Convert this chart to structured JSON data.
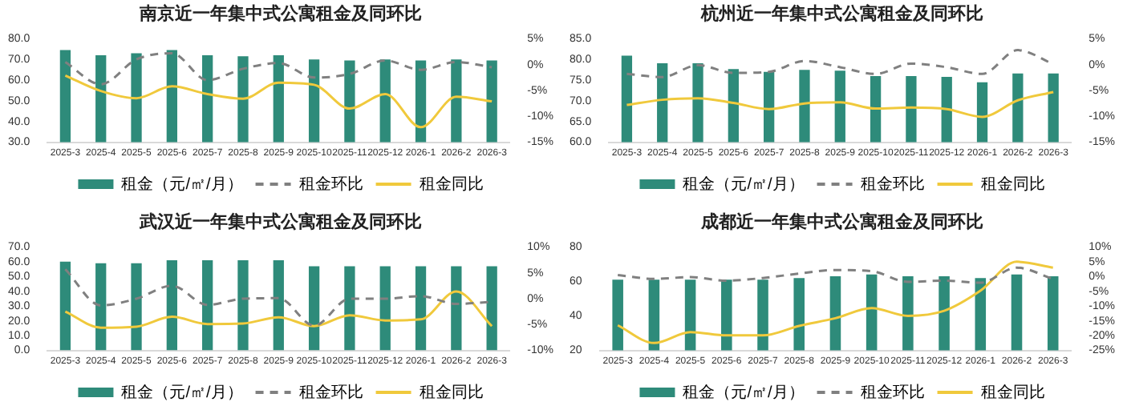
{
  "chart_data": [
    {
      "type": "bar",
      "title": "南京近一年集中式公寓租金及同环比",
      "categories": [
        "2025-3",
        "2025-4",
        "2025-5",
        "2025-6",
        "2025-7",
        "2025-8",
        "2025-9",
        "2025-10",
        "2025-11",
        "2025-12",
        "2026-1",
        "2026-2",
        "2026-3"
      ],
      "ylim": [
        30,
        80
      ],
      "yticks": [
        {
          "value": 30,
          "label": "30.0"
        },
        {
          "value": 40,
          "label": "40.0"
        },
        {
          "value": 50,
          "label": "50.0"
        },
        {
          "value": 60,
          "label": "60.0"
        },
        {
          "value": 70,
          "label": "70.0"
        },
        {
          "value": 80,
          "label": "80.0"
        }
      ],
      "y2lim": [
        -15,
        5
      ],
      "y2ticks": [
        {
          "value": -15,
          "label": "-15%"
        },
        {
          "value": -10,
          "label": "-10%"
        },
        {
          "value": -5,
          "label": "-5%"
        },
        {
          "value": 0,
          "label": "0%"
        },
        {
          "value": 5,
          "label": "5%"
        }
      ],
      "grid": false,
      "legend": "bottom",
      "marker": "none",
      "series": [
        {
          "name": "租金（元/㎡/月）",
          "color": "#2e8b7a",
          "values": [
            74.5,
            72,
            73,
            74.5,
            72,
            71.5,
            72,
            70,
            69.5,
            70,
            69.5,
            70,
            69.5
          ]
        },
        {
          "name": "租金环比",
          "type": "line",
          "axis": "y2",
          "line_style": "dashed",
          "color": "#808080",
          "values": [
            0.5,
            -3.8,
            1,
            2.2,
            -3,
            -0.8,
            0.3,
            -2.5,
            -1.8,
            0.8,
            -1,
            0.5,
            -0.5
          ]
        },
        {
          "name": "租金同比",
          "type": "line",
          "axis": "y2",
          "line_style": "solid",
          "color": "#f0c93c",
          "values": [
            -2.1,
            -5.1,
            -6.5,
            -4.2,
            -5.7,
            -6.6,
            -3.5,
            -3.9,
            -8.5,
            -5.7,
            -12.1,
            -6.2,
            -7.1
          ]
        }
      ]
    },
    {
      "type": "bar",
      "title": "杭州近一年集中式公寓租金及同环比",
      "categories": [
        "2025-3",
        "2025-4",
        "2025-5",
        "2025-6",
        "2025-7",
        "2025-8",
        "2025-9",
        "2025-10",
        "2025-11",
        "2025-12",
        "2026-1",
        "2026-2",
        "2026-3"
      ],
      "ylim": [
        60,
        85
      ],
      "yticks": [
        {
          "value": 60,
          "label": "60.0"
        },
        {
          "value": 65,
          "label": "65.0"
        },
        {
          "value": 70,
          "label": "70.0"
        },
        {
          "value": 75,
          "label": "75.0"
        },
        {
          "value": 80,
          "label": "80.0"
        },
        {
          "value": 85,
          "label": "85.0"
        }
      ],
      "y2lim": [
        -15,
        5
      ],
      "y2ticks": [
        {
          "value": -15,
          "label": "-15%"
        },
        {
          "value": -10,
          "label": "-10%"
        },
        {
          "value": -5,
          "label": "-5%"
        },
        {
          "value": 0,
          "label": "0%"
        },
        {
          "value": 5,
          "label": "5%"
        }
      ],
      "grid": false,
      "legend": "bottom",
      "marker": "none",
      "series": [
        {
          "name": "租金（元/㎡/月）",
          "color": "#2e8b7a",
          "values": [
            80.9,
            79.1,
            79.1,
            77.7,
            77,
            77.5,
            77.3,
            76,
            76,
            75.8,
            74.5,
            76.6,
            76.6
          ]
        },
        {
          "name": "租金环比",
          "type": "line",
          "axis": "y2",
          "line_style": "dashed",
          "color": "#808080",
          "values": [
            -1.8,
            -2.4,
            -0.1,
            -1.6,
            -1.4,
            0.7,
            -0.5,
            -1.8,
            0.2,
            -0.5,
            -1.8,
            2.8,
            0.1
          ]
        },
        {
          "name": "租金同比",
          "type": "line",
          "axis": "y2",
          "line_style": "solid",
          "color": "#f0c93c",
          "values": [
            -7.8,
            -6.8,
            -6.5,
            -7.4,
            -8.6,
            -7.5,
            -7.3,
            -8.5,
            -8.3,
            -8.6,
            -10.1,
            -6.9,
            -5.3
          ]
        }
      ]
    },
    {
      "type": "bar",
      "title": "武汉近一年集中式公寓租金及同环比",
      "categories": [
        "2025-3",
        "2025-4",
        "2025-5",
        "2025-6",
        "2025-7",
        "2025-8",
        "2025-9",
        "2025-10",
        "2025-11",
        "2025-12",
        "2026-1",
        "2026-2",
        "2026-3"
      ],
      "ylim": [
        0,
        70
      ],
      "yticks": [
        {
          "value": 0,
          "label": "0.0"
        },
        {
          "value": 10,
          "label": "10.0"
        },
        {
          "value": 20,
          "label": "20.0"
        },
        {
          "value": 30,
          "label": "30.0"
        },
        {
          "value": 40,
          "label": "40.0"
        },
        {
          "value": 50,
          "label": "50.0"
        },
        {
          "value": 60,
          "label": "60.0"
        },
        {
          "value": 70,
          "label": "70.0"
        }
      ],
      "y2lim": [
        -10,
        10
      ],
      "y2ticks": [
        {
          "value": -10,
          "label": "-10%"
        },
        {
          "value": -5,
          "label": "-5%"
        },
        {
          "value": 0,
          "label": "0%"
        },
        {
          "value": 5,
          "label": "5%"
        },
        {
          "value": 10,
          "label": "10%"
        }
      ],
      "grid": false,
      "legend": "bottom",
      "marker": "none",
      "series": [
        {
          "name": "租金（元/㎡/月）",
          "color": "#2e8b7a",
          "values": [
            60,
            59,
            59,
            61,
            61,
            61,
            61,
            57,
            57,
            57,
            57,
            57,
            57
          ]
        },
        {
          "name": "租金环比",
          "type": "line",
          "axis": "y2",
          "line_style": "dashed",
          "color": "#808080",
          "values": [
            5.7,
            -1.3,
            0,
            2.5,
            -1.2,
            0,
            0.1,
            -5.2,
            0,
            0,
            0.5,
            -1,
            -0.6
          ]
        },
        {
          "name": "租金同比",
          "type": "line",
          "axis": "y2",
          "line_style": "solid",
          "color": "#f0c93c",
          "values": [
            -2.5,
            -5.6,
            -5.4,
            -3.5,
            -4.9,
            -4.8,
            -3.6,
            -5.3,
            -3.2,
            -4.2,
            -4,
            1.4,
            -5.3
          ]
        }
      ]
    },
    {
      "type": "bar",
      "title": "成都近一年集中式公寓租金及同环比",
      "categories": [
        "2025-3",
        "2025-4",
        "2025-5",
        "2025-6",
        "2025-7",
        "2025-8",
        "2025-9",
        "2025-10",
        "2025-11",
        "2025-12",
        "2026-1",
        "2026-2",
        "2026-3"
      ],
      "ylim": [
        20,
        80
      ],
      "yticks": [
        20,
        40,
        60,
        80
      ],
      "y2lim": [
        -25,
        10
      ],
      "y2ticks": [
        {
          "value": -25,
          "label": "-25%"
        },
        {
          "value": -20,
          "label": "-20%"
        },
        {
          "value": -15,
          "label": "-15%"
        },
        {
          "value": -10,
          "label": "-10%"
        },
        {
          "value": -5,
          "label": "-5%"
        },
        {
          "value": 0,
          "label": "0%"
        },
        {
          "value": 5,
          "label": "5%"
        },
        {
          "value": 10,
          "label": "10%"
        }
      ],
      "grid": false,
      "legend": "bottom",
      "marker": "none",
      "series": [
        {
          "name": "租金（元/㎡/月）",
          "color": "#2e8b7a",
          "values": [
            61,
            61,
            61,
            61,
            61,
            62,
            63,
            64,
            63,
            63,
            62,
            64,
            63
          ]
        },
        {
          "name": "租金环比",
          "type": "line",
          "axis": "y2",
          "line_style": "dashed",
          "color": "#808080",
          "values": [
            0.5,
            -0.8,
            -0.2,
            -1.4,
            -0.5,
            1,
            2.2,
            1.8,
            -1.8,
            -1.4,
            -2.1,
            3,
            -0.8
          ]
        },
        {
          "name": "租金同比",
          "type": "line",
          "axis": "y2",
          "line_style": "solid",
          "color": "#f0c93c",
          "values": [
            -16.5,
            -22.5,
            -18.8,
            -19.9,
            -19.9,
            -16.7,
            -14.1,
            -10.7,
            -13.3,
            -11.6,
            -4.8,
            5,
            3
          ]
        }
      ]
    }
  ]
}
